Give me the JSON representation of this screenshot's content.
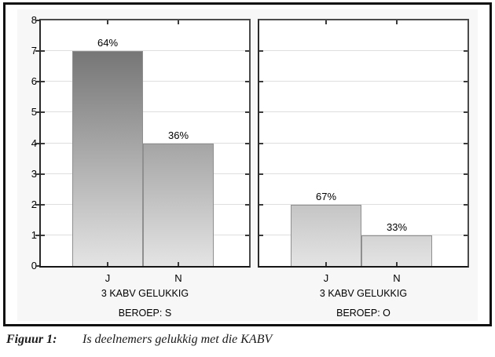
{
  "figure": {
    "caption_label": "Figuur 1:",
    "caption_text": "Is deelnemers gelukkig met die KABV"
  },
  "chart_data": {
    "type": "bar",
    "layout": "two-panel-frequency-histogram",
    "title": "",
    "categories": [
      "J",
      "N"
    ],
    "y_axis": {
      "ticks": [
        "0",
        "1",
        "2",
        "3",
        "4",
        "5",
        "6",
        "7",
        "8"
      ],
      "range": [
        0,
        8
      ],
      "grid": true
    },
    "panels": [
      {
        "xlabel_line1": "3 KABV GELUKKIG",
        "xlabel_line2": "BEROEP: S",
        "values": [
          7,
          4
        ],
        "bar_labels": [
          "64%",
          "36%"
        ]
      },
      {
        "xlabel_line1": "3 KABV GELUKKIG",
        "xlabel_line2": "BEROEP: O",
        "values": [
          2,
          1
        ],
        "bar_labels": [
          "67%",
          "33%"
        ]
      }
    ],
    "colors": {
      "bar_gradient_top_at_max": "#666666",
      "bar_gradient_bottom": "#e4e4e4",
      "plot_frame": "#4a4a4a",
      "gridline": "#dedede",
      "graph_background": "#f7f7f7",
      "figure_border": "#111111"
    }
  }
}
